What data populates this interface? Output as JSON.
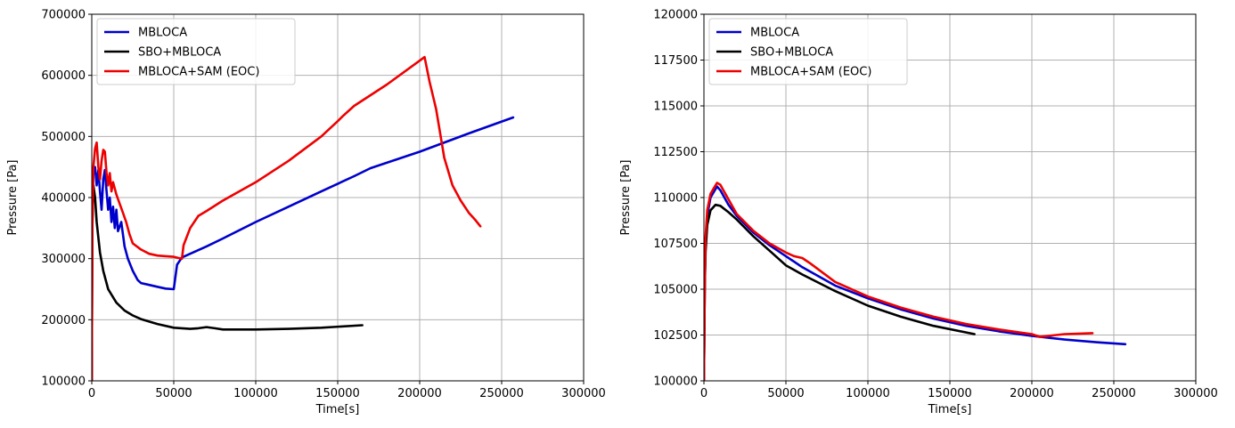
{
  "chart_data": [
    {
      "type": "line",
      "xlabel": "Time[s]",
      "ylabel": "Pressure [Pa]",
      "xlim": [
        0,
        300000
      ],
      "ylim": [
        100000,
        700000
      ],
      "xticks": [
        0,
        50000,
        100000,
        150000,
        200000,
        250000,
        300000
      ],
      "yticks": [
        100000,
        200000,
        300000,
        400000,
        500000,
        600000,
        700000
      ],
      "xtick_labels": [
        "0",
        "50000",
        "100000",
        "150000",
        "200000",
        "250000",
        "300000"
      ],
      "ytick_labels": [
        "100000",
        "200000",
        "300000",
        "400000",
        "500000",
        "600000",
        "700000"
      ],
      "grid": true,
      "legend_position": "top-left",
      "series": [
        {
          "name": "MBLOCA",
          "color": "#0000cc",
          "points": [
            [
              0,
              100000
            ],
            [
              300,
              380000
            ],
            [
              1000,
              440000
            ],
            [
              2000,
              450000
            ],
            [
              3000,
              420000
            ],
            [
              4000,
              445000
            ],
            [
              5000,
              410000
            ],
            [
              6000,
              380000
            ],
            [
              7000,
              430000
            ],
            [
              8000,
              445000
            ],
            [
              9000,
              410000
            ],
            [
              10000,
              380000
            ],
            [
              11000,
              400000
            ],
            [
              12000,
              360000
            ],
            [
              13000,
              385000
            ],
            [
              14000,
              350000
            ],
            [
              15000,
              380000
            ],
            [
              16000,
              345000
            ],
            [
              18000,
              360000
            ],
            [
              20000,
              320000
            ],
            [
              22000,
              300000
            ],
            [
              25000,
              280000
            ],
            [
              28000,
              265000
            ],
            [
              30000,
              260000
            ],
            [
              35000,
              257000
            ],
            [
              40000,
              254000
            ],
            [
              45000,
              251000
            ],
            [
              50000,
              250000
            ],
            [
              52000,
              290000
            ],
            [
              55000,
              302000
            ],
            [
              60000,
              308000
            ],
            [
              70000,
              320000
            ],
            [
              80000,
              333000
            ],
            [
              100000,
              360000
            ],
            [
              120000,
              385000
            ],
            [
              140000,
              410000
            ],
            [
              160000,
              435000
            ],
            [
              170000,
              448000
            ],
            [
              200000,
              475000
            ],
            [
              230000,
              505000
            ],
            [
              257000,
              531000
            ]
          ]
        },
        {
          "name": "SBO+MBLOCA",
          "color": "#000000",
          "points": [
            [
              0,
              100000
            ],
            [
              300,
              350000
            ],
            [
              1000,
              420000
            ],
            [
              2000,
              400000
            ],
            [
              3000,
              360000
            ],
            [
              5000,
              310000
            ],
            [
              7000,
              280000
            ],
            [
              10000,
              250000
            ],
            [
              15000,
              228000
            ],
            [
              20000,
              215000
            ],
            [
              25000,
              207000
            ],
            [
              30000,
              201000
            ],
            [
              40000,
              193000
            ],
            [
              50000,
              187000
            ],
            [
              60000,
              185000
            ],
            [
              65000,
              186000
            ],
            [
              70000,
              188000
            ],
            [
              75000,
              186000
            ],
            [
              80000,
              184000
            ],
            [
              100000,
              184000
            ],
            [
              120000,
              185000
            ],
            [
              140000,
              187000
            ],
            [
              165000,
              191000
            ]
          ]
        },
        {
          "name": "MBLOCA+SAM (EOC)",
          "color": "#ee0000",
          "points": [
            [
              0,
              100000
            ],
            [
              300,
              350000
            ],
            [
              1000,
              450000
            ],
            [
              2000,
              480000
            ],
            [
              3000,
              490000
            ],
            [
              4000,
              450000
            ],
            [
              5000,
              430000
            ],
            [
              6000,
              460000
            ],
            [
              7000,
              478000
            ],
            [
              8000,
              475000
            ],
            [
              9000,
              440000
            ],
            [
              10000,
              420000
            ],
            [
              11000,
              440000
            ],
            [
              12000,
              410000
            ],
            [
              13000,
              425000
            ],
            [
              15000,
              405000
            ],
            [
              17000,
              390000
            ],
            [
              19000,
              375000
            ],
            [
              21000,
              360000
            ],
            [
              23000,
              340000
            ],
            [
              25000,
              325000
            ],
            [
              30000,
              315000
            ],
            [
              35000,
              308000
            ],
            [
              40000,
              305000
            ],
            [
              45000,
              304000
            ],
            [
              50000,
              303000
            ],
            [
              53000,
              301000
            ],
            [
              55000,
              300000
            ],
            [
              56000,
              322000
            ],
            [
              60000,
              350000
            ],
            [
              65000,
              370000
            ],
            [
              70000,
              378000
            ],
            [
              80000,
              395000
            ],
            [
              100000,
              425000
            ],
            [
              120000,
              460000
            ],
            [
              140000,
              500000
            ],
            [
              150000,
              525000
            ],
            [
              153000,
              533000
            ],
            [
              160000,
              550000
            ],
            [
              180000,
              585000
            ],
            [
              202000,
              628000
            ],
            [
              203000,
              630000
            ],
            [
              206000,
              590000
            ],
            [
              210000,
              545000
            ],
            [
              215000,
              465000
            ],
            [
              220000,
              420000
            ],
            [
              225000,
              395000
            ],
            [
              230000,
              375000
            ],
            [
              234000,
              363000
            ],
            [
              237000,
              353000
            ]
          ]
        }
      ]
    },
    {
      "type": "line",
      "xlabel": "Time[s]",
      "ylabel": "Pressure [Pa]",
      "xlim": [
        0,
        300000
      ],
      "ylim": [
        100000,
        120000
      ],
      "xticks": [
        0,
        50000,
        100000,
        150000,
        200000,
        250000,
        300000
      ],
      "yticks": [
        100000,
        102500,
        105000,
        107500,
        110000,
        112500,
        115000,
        117500,
        120000
      ],
      "xtick_labels": [
        "0",
        "50000",
        "100000",
        "150000",
        "200000",
        "250000",
        "300000"
      ],
      "ytick_labels": [
        "100000",
        "102500",
        "105000",
        "107500",
        "110000",
        "112500",
        "115000",
        "117500",
        "120000"
      ],
      "grid": true,
      "legend_position": "top-left",
      "series": [
        {
          "name": "MBLOCA",
          "color": "#0000cc",
          "points": [
            [
              0,
              100000
            ],
            [
              500,
              105000
            ],
            [
              1000,
              107500
            ],
            [
              2000,
              109000
            ],
            [
              4000,
              110000
            ],
            [
              6000,
              110300
            ],
            [
              8000,
              110600
            ],
            [
              10000,
              110400
            ],
            [
              15000,
              109600
            ],
            [
              20000,
              109000
            ],
            [
              30000,
              108100
            ],
            [
              40000,
              107400
            ],
            [
              50000,
              106800
            ],
            [
              60000,
              106200
            ],
            [
              80000,
              105200
            ],
            [
              100000,
              104500
            ],
            [
              120000,
              103900
            ],
            [
              140000,
              103400
            ],
            [
              160000,
              103000
            ],
            [
              180000,
              102700
            ],
            [
              200000,
              102450
            ],
            [
              220000,
              102250
            ],
            [
              240000,
              102100
            ],
            [
              257000,
              102000
            ]
          ]
        },
        {
          "name": "SBO+MBLOCA",
          "color": "#000000",
          "points": [
            [
              0,
              100000
            ],
            [
              500,
              105000
            ],
            [
              1000,
              107000
            ],
            [
              2000,
              108500
            ],
            [
              4000,
              109300
            ],
            [
              7000,
              109600
            ],
            [
              10000,
              109550
            ],
            [
              15000,
              109200
            ],
            [
              20000,
              108800
            ],
            [
              30000,
              107900
            ],
            [
              40000,
              107100
            ],
            [
              50000,
              106300
            ],
            [
              60000,
              105800
            ],
            [
              80000,
              104900
            ],
            [
              100000,
              104100
            ],
            [
              120000,
              103500
            ],
            [
              140000,
              103000
            ],
            [
              165000,
              102550
            ]
          ]
        },
        {
          "name": "MBLOCA+SAM (EOC)",
          "color": "#ee0000",
          "points": [
            [
              0,
              100000
            ],
            [
              500,
              105000
            ],
            [
              1000,
              107800
            ],
            [
              2000,
              109300
            ],
            [
              4000,
              110200
            ],
            [
              6000,
              110500
            ],
            [
              8000,
              110800
            ],
            [
              10000,
              110700
            ],
            [
              15000,
              109900
            ],
            [
              20000,
              109100
            ],
            [
              30000,
              108200
            ],
            [
              40000,
              107500
            ],
            [
              50000,
              107000
            ],
            [
              55000,
              106800
            ],
            [
              60000,
              106700
            ],
            [
              65000,
              106400
            ],
            [
              80000,
              105400
            ],
            [
              100000,
              104600
            ],
            [
              120000,
              104000
            ],
            [
              140000,
              103500
            ],
            [
              160000,
              103100
            ],
            [
              180000,
              102800
            ],
            [
              200000,
              102550
            ],
            [
              205000,
              102400
            ],
            [
              210000,
              102450
            ],
            [
              220000,
              102550
            ],
            [
              237000,
              102600
            ]
          ]
        }
      ]
    }
  ]
}
